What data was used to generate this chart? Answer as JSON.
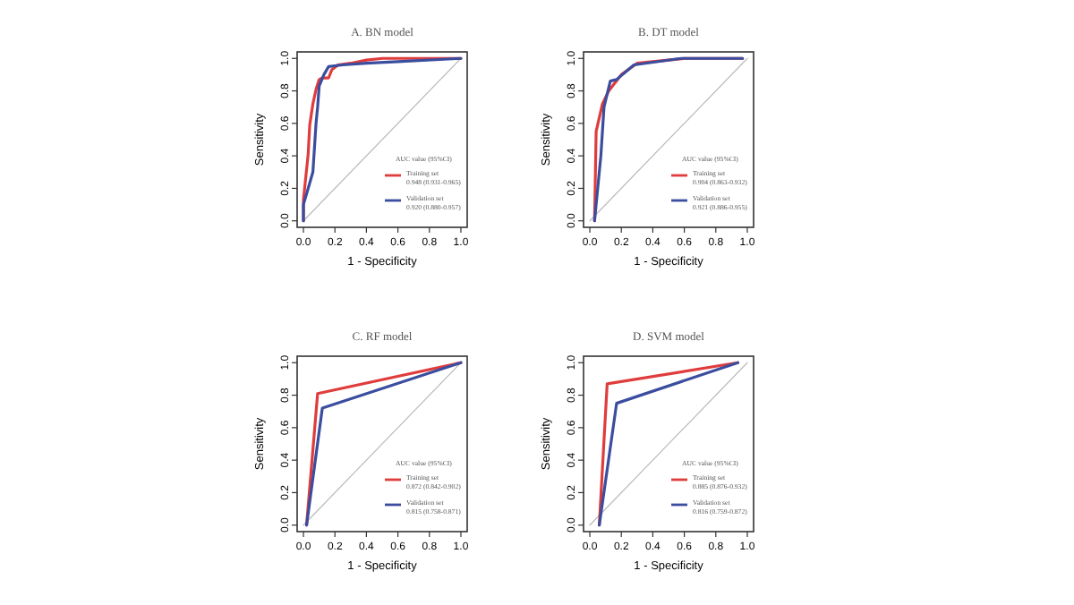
{
  "chart_data": [
    {
      "type": "line",
      "title": "A. BN model",
      "xlabel": "1 - Specificity",
      "ylabel": "Sensitivity",
      "legend_title": "AUC value (95%CI)",
      "legend": "bottom right",
      "xlim": [
        -0.04,
        1.04
      ],
      "ylim": [
        -0.04,
        1.04
      ],
      "xticks": [
        {
          "value": 0,
          "label": "0.0"
        },
        {
          "value": 0.2,
          "label": "0.2"
        },
        {
          "value": 0.4,
          "label": "0.4"
        },
        {
          "value": 0.6,
          "label": "0.6"
        },
        {
          "value": 0.8,
          "label": "0.8"
        },
        {
          "value": 1,
          "label": "1.0"
        }
      ],
      "yticks": [
        {
          "value": 0,
          "label": "0.0"
        },
        {
          "value": 0.2,
          "label": "0.2"
        },
        {
          "value": 0.4,
          "label": "0.4"
        },
        {
          "value": 0.6,
          "label": "0.6"
        },
        {
          "value": 0.8,
          "label": "0.8"
        },
        {
          "value": 1,
          "label": "1.0"
        }
      ],
      "annotations": [
        "0.948  (0.931-0.965)",
        "0.920  (0.880-0.957)"
      ],
      "series": [
        {
          "color": "#bbbbbb",
          "x": [
            0,
            1
          ],
          "values": [
            0,
            1
          ]
        },
        {
          "name": "Training set",
          "color": "#e03c3c",
          "x": [
            0,
            0,
            0.03,
            0.04,
            0.06,
            0.08,
            0.1,
            0.12,
            0.16,
            0.18,
            0.22,
            0.3,
            0.4,
            0.5,
            1
          ],
          "values": [
            0,
            0.13,
            0.41,
            0.59,
            0.72,
            0.81,
            0.87,
            0.88,
            0.88,
            0.93,
            0.96,
            0.97,
            0.99,
            1,
            1
          ]
        },
        {
          "name": "Validation set",
          "color": "#3a4d9e",
          "x": [
            0,
            0,
            0.03,
            0.06,
            0.07,
            0.08,
            0.09,
            0.1,
            0.13,
            0.16,
            0.25,
            0.4,
            0.6,
            1
          ],
          "values": [
            0,
            0.1,
            0.2,
            0.3,
            0.45,
            0.6,
            0.7,
            0.83,
            0.9,
            0.95,
            0.96,
            0.97,
            0.98,
            1
          ]
        }
      ]
    },
    {
      "type": "line",
      "title": "B. DT model",
      "xlabel": "1 - Specificity",
      "ylabel": "Sensitivity",
      "legend_title": "AUC value (95%CI)",
      "legend": "bottom right",
      "xlim": [
        -0.04,
        1.04
      ],
      "ylim": [
        -0.04,
        1.04
      ],
      "xticks": [
        {
          "value": 0,
          "label": "0.0"
        },
        {
          "value": 0.2,
          "label": "0.2"
        },
        {
          "value": 0.4,
          "label": "0.4"
        },
        {
          "value": 0.6,
          "label": "0.6"
        },
        {
          "value": 0.8,
          "label": "0.8"
        },
        {
          "value": 1,
          "label": "1.0"
        }
      ],
      "yticks": [
        {
          "value": 0,
          "label": "0.0"
        },
        {
          "value": 0.2,
          "label": "0.2"
        },
        {
          "value": 0.4,
          "label": "0.4"
        },
        {
          "value": 0.6,
          "label": "0.6"
        },
        {
          "value": 0.8,
          "label": "0.8"
        },
        {
          "value": 1,
          "label": "1.0"
        }
      ],
      "annotations": [
        "0.904  (0.863-0.932)",
        "0.921  (0.886-0.955)"
      ],
      "series": [
        {
          "color": "#bbbbbb",
          "x": [
            0,
            1
          ],
          "values": [
            0,
            1
          ]
        },
        {
          "name": "Training set",
          "color": "#e03c3c",
          "x": [
            0.03,
            0.04,
            0.08,
            0.12,
            0.2,
            0.3,
            0.6,
            0.97
          ],
          "values": [
            0,
            0.55,
            0.72,
            0.8,
            0.9,
            0.97,
            1,
            1
          ]
        },
        {
          "name": "Validation set",
          "color": "#3a4d9e",
          "x": [
            0.03,
            0.07,
            0.09,
            0.13,
            0.17,
            0.28,
            0.58,
            0.97
          ],
          "values": [
            0,
            0.4,
            0.7,
            0.86,
            0.87,
            0.96,
            1,
            1
          ]
        }
      ]
    },
    {
      "type": "line",
      "title": "C. RF model",
      "xlabel": "1 - Specificity",
      "ylabel": "Sensitivity",
      "legend_title": "AUC value (95%CI)",
      "legend": "bottom right",
      "xlim": [
        -0.04,
        1.04
      ],
      "ylim": [
        -0.04,
        1.04
      ],
      "xticks": [
        {
          "value": 0,
          "label": "0.0"
        },
        {
          "value": 0.2,
          "label": "0.2"
        },
        {
          "value": 0.4,
          "label": "0.4"
        },
        {
          "value": 0.6,
          "label": "0.6"
        },
        {
          "value": 0.8,
          "label": "0.8"
        },
        {
          "value": 1,
          "label": "1.0"
        }
      ],
      "yticks": [
        {
          "value": 0,
          "label": "0.0"
        },
        {
          "value": 0.2,
          "label": "0.2"
        },
        {
          "value": 0.4,
          "label": "0.4"
        },
        {
          "value": 0.6,
          "label": "0.6"
        },
        {
          "value": 0.8,
          "label": "0.8"
        },
        {
          "value": 1,
          "label": "1.0"
        }
      ],
      "annotations": [
        "0.872  (0.842-0.902)",
        "0.815  (0.758-0.871)"
      ],
      "series": [
        {
          "color": "#bbbbbb",
          "x": [
            0,
            1
          ],
          "values": [
            0,
            1
          ]
        },
        {
          "name": "Training set",
          "color": "#e03c3c",
          "x": [
            0.02,
            0.09,
            1
          ],
          "values": [
            0,
            0.81,
            1
          ]
        },
        {
          "name": "Validation set",
          "color": "#3a4d9e",
          "x": [
            0.02,
            0.12,
            1
          ],
          "values": [
            0,
            0.72,
            1
          ]
        }
      ]
    },
    {
      "type": "line",
      "title": "D. SVM model",
      "xlabel": "1 - Specificity",
      "ylabel": "Sensitivity",
      "legend_title": "AUC value (95%CI)",
      "legend": "bottom right",
      "xlim": [
        -0.04,
        1.04
      ],
      "ylim": [
        -0.04,
        1.04
      ],
      "xticks": [
        {
          "value": 0,
          "label": "0.0"
        },
        {
          "value": 0.2,
          "label": "0.2"
        },
        {
          "value": 0.4,
          "label": "0.4"
        },
        {
          "value": 0.6,
          "label": "0.6"
        },
        {
          "value": 0.8,
          "label": "0.8"
        },
        {
          "value": 1,
          "label": "1.0"
        }
      ],
      "yticks": [
        {
          "value": 0,
          "label": "0.0"
        },
        {
          "value": 0.2,
          "label": "0.2"
        },
        {
          "value": 0.4,
          "label": "0.4"
        },
        {
          "value": 0.6,
          "label": "0.6"
        },
        {
          "value": 0.8,
          "label": "0.8"
        },
        {
          "value": 1,
          "label": "1.0"
        }
      ],
      "annotations": [
        "0.885  (0.876-0.932)",
        "0.816  (0.759-0.872)"
      ],
      "series": [
        {
          "color": "#bbbbbb",
          "x": [
            0,
            1
          ],
          "values": [
            0,
            1
          ]
        },
        {
          "name": "Training set",
          "color": "#e03c3c",
          "x": [
            0.06,
            0.11,
            0.94
          ],
          "values": [
            0,
            0.87,
            1
          ]
        },
        {
          "name": "Validation set",
          "color": "#3a4d9e",
          "x": [
            0.06,
            0.17,
            0.94
          ],
          "values": [
            0,
            0.75,
            1
          ]
        }
      ]
    }
  ]
}
